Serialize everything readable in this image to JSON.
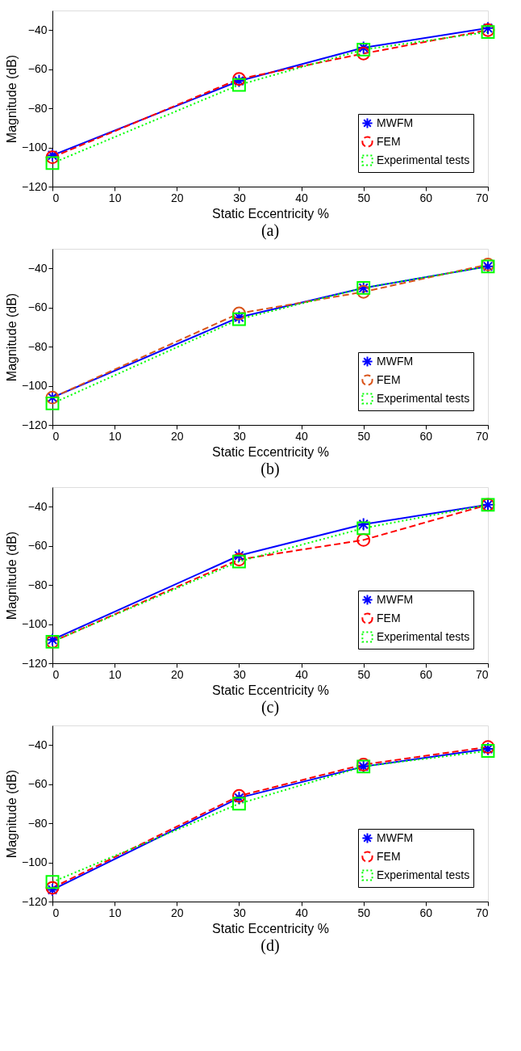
{
  "chart_data": [
    {
      "type": "line",
      "xlabel": "Static Eccentricity %",
      "ylabel": "Magnitude (dB)",
      "annotations": [
        "(a)"
      ],
      "x": [
        0,
        30,
        50,
        70
      ],
      "xlim": [
        0,
        70
      ],
      "xticks": [
        0,
        10,
        20,
        30,
        40,
        50,
        60,
        70
      ],
      "ylim": [
        -120,
        -30
      ],
      "yticks": [
        -120,
        -100,
        -80,
        -60,
        -40
      ],
      "legend": "bottom right",
      "grid": false,
      "series": [
        {
          "name": "MWFM",
          "color": "#0000ff",
          "marker": "cross",
          "line_style": "solid",
          "values": [
            -104,
            -66,
            -49,
            -39
          ]
        },
        {
          "name": "FEM",
          "color": "#ff0000",
          "marker": "circle",
          "line_style": "dashed",
          "values": [
            -105,
            -65,
            -52,
            -40
          ]
        },
        {
          "name": "Experimental tests",
          "color": "#00ff00",
          "marker": "square",
          "line_style": "dotted",
          "values": [
            -108,
            -68,
            -50,
            -41
          ]
        }
      ]
    },
    {
      "type": "line",
      "xlabel": "Static Eccentricity %",
      "ylabel": "Magnitude (dB)",
      "annotations": [
        "(b)"
      ],
      "x": [
        0,
        30,
        50,
        70
      ],
      "xlim": [
        0,
        70
      ],
      "xticks": [
        0,
        10,
        20,
        30,
        40,
        50,
        60,
        70
      ],
      "ylim": [
        -120,
        -30
      ],
      "yticks": [
        -120,
        -100,
        -80,
        -60,
        -40
      ],
      "legend": "bottom right",
      "grid": false,
      "series": [
        {
          "name": "MWFM",
          "color": "#0000ff",
          "marker": "cross",
          "line_style": "solid",
          "values": [
            -106,
            -65,
            -50,
            -39
          ]
        },
        {
          "name": "FEM",
          "color": "#d95319",
          "marker": "circle",
          "line_style": "dashed",
          "values": [
            -106,
            -63,
            -52,
            -38
          ]
        },
        {
          "name": "Experimental tests",
          "color": "#00ff00",
          "marker": "square",
          "line_style": "dotted",
          "values": [
            -109,
            -66,
            -50,
            -39
          ]
        }
      ]
    },
    {
      "type": "line",
      "xlabel": "Static Eccentricity %",
      "ylabel": "Magnitude (dB)",
      "annotations": [
        "(c)"
      ],
      "x": [
        0,
        30,
        50,
        70
      ],
      "xlim": [
        0,
        70
      ],
      "xticks": [
        0,
        10,
        20,
        30,
        40,
        50,
        60,
        70
      ],
      "ylim": [
        -120,
        -30
      ],
      "yticks": [
        -120,
        -100,
        -80,
        -60,
        -40
      ],
      "legend": "bottom right",
      "grid": false,
      "series": [
        {
          "name": "MWFM",
          "color": "#0000ff",
          "marker": "cross",
          "line_style": "solid",
          "values": [
            -108,
            -65,
            -49,
            -39
          ]
        },
        {
          "name": "FEM",
          "color": "#ff0000",
          "marker": "circle",
          "line_style": "dashed",
          "values": [
            -109,
            -67,
            -57,
            -39
          ]
        },
        {
          "name": "Experimental tests",
          "color": "#00ff00",
          "marker": "square",
          "line_style": "dotted",
          "values": [
            -109,
            -68,
            -51,
            -39
          ]
        }
      ]
    },
    {
      "type": "line",
      "xlabel": "Static Eccentricity %",
      "ylabel": "Magnitude (dB)",
      "annotations": [
        "(d)"
      ],
      "x": [
        0,
        30,
        50,
        70
      ],
      "xlim": [
        0,
        70
      ],
      "xticks": [
        0,
        10,
        20,
        30,
        40,
        50,
        60,
        70
      ],
      "ylim": [
        -120,
        -30
      ],
      "yticks": [
        -120,
        -100,
        -80,
        -60,
        -40
      ],
      "legend": "bottom right",
      "grid": false,
      "series": [
        {
          "name": "MWFM",
          "color": "#0000ff",
          "marker": "cross",
          "line_style": "solid",
          "values": [
            -114,
            -67,
            -51,
            -42
          ]
        },
        {
          "name": "FEM",
          "color": "#ff0000",
          "marker": "circle",
          "line_style": "dashed",
          "values": [
            -113,
            -66,
            -50,
            -41
          ]
        },
        {
          "name": "Experimental tests",
          "color": "#00ff00",
          "marker": "square",
          "line_style": "dotted",
          "values": [
            -110,
            -70,
            -51,
            -43
          ]
        }
      ]
    }
  ]
}
